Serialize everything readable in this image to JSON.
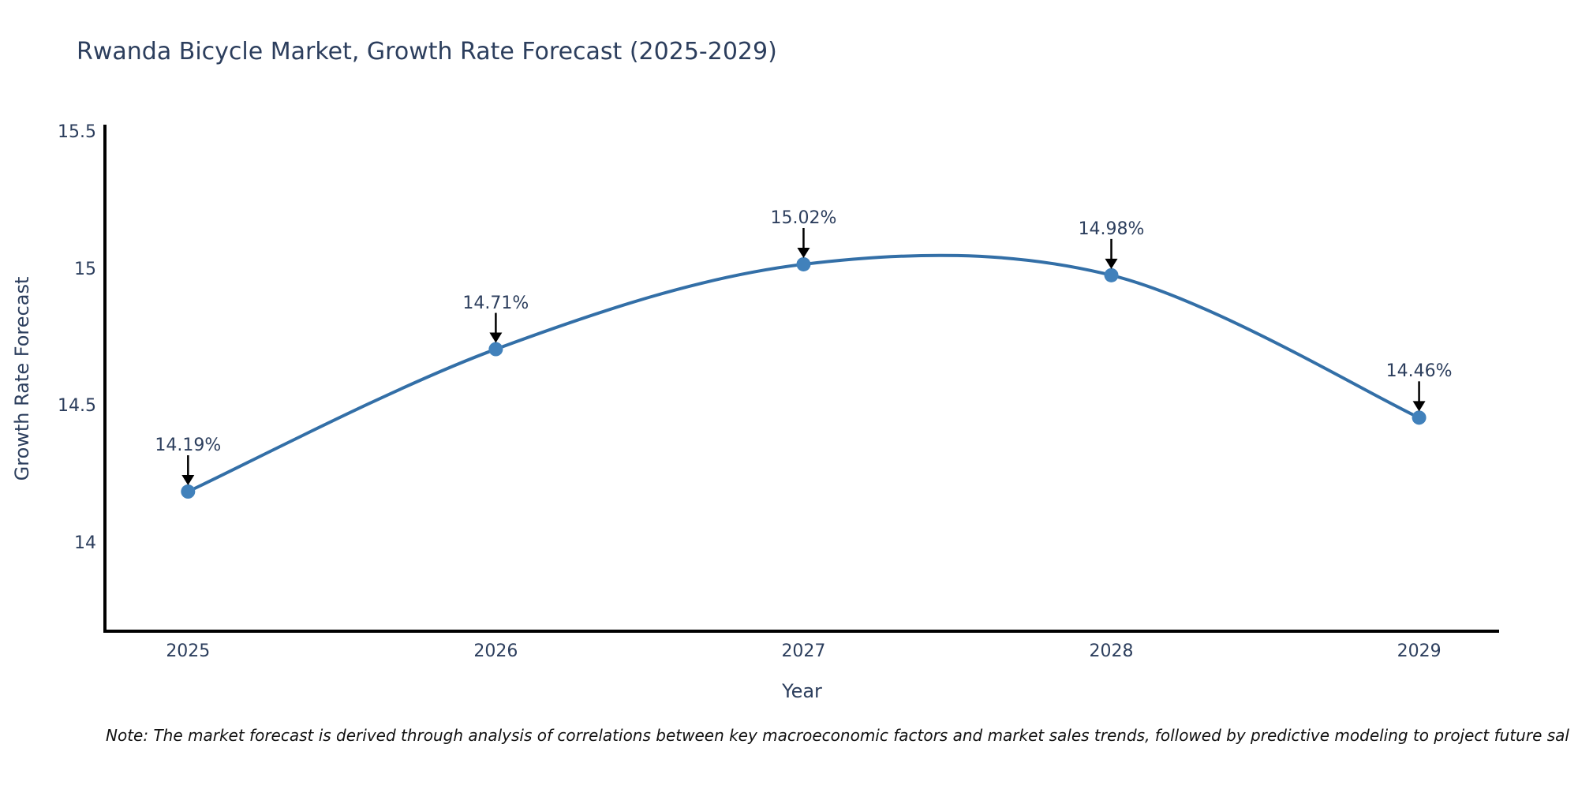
{
  "title": "Rwanda Bicycle Market, Growth Rate Forecast (2025-2029)",
  "note": "Note: The market forecast is derived through analysis of correlations between key macroeconomic factors and market sales trends, followed by predictive modeling to project future sal",
  "chart_data": {
    "type": "line",
    "title": "Rwanda Bicycle Market, Growth Rate Forecast (2025-2029)",
    "xlabel": "Year",
    "ylabel": "Growth Rate Forecast",
    "x": [
      2025,
      2026,
      2027,
      2028,
      2029
    ],
    "values": [
      14.19,
      14.71,
      15.02,
      14.98,
      14.46
    ],
    "point_labels": [
      "14.19%",
      "14.71%",
      "15.02%",
      "14.98%",
      "14.46%"
    ],
    "xtick_labels": [
      "2025",
      "2026",
      "2027",
      "2028",
      "2029"
    ],
    "ytick_values": [
      14,
      14.5,
      15,
      15.5
    ],
    "ytick_labels": [
      "14",
      "14.5",
      "15",
      "15.5"
    ],
    "xlim": [
      2024.73,
      2029.26
    ],
    "ylim": [
      13.68,
      15.53
    ],
    "grid": false,
    "legend": "none",
    "line_style": "spline",
    "annotations": "value labels with downward arrows above each point",
    "colors": {
      "line": "#336fa7",
      "marker": "#4181bb",
      "arrow": "#000000",
      "axis": "#000000",
      "text": "#2c3e5d",
      "note_text": "#111111",
      "background": "#ffffff"
    }
  }
}
